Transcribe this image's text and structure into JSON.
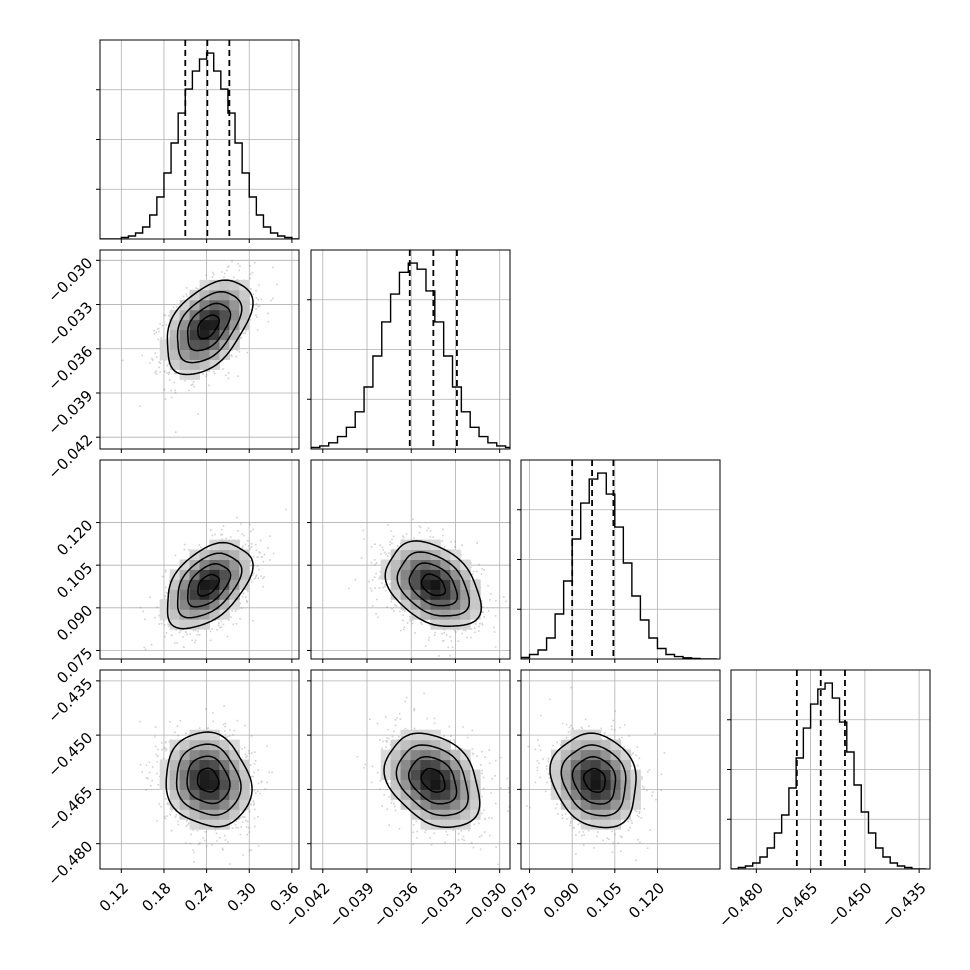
{
  "chart_data": {
    "type": "corner",
    "parameters": [
      {
        "axis_range": [
          0.09,
          0.37
        ],
        "ticks": [
          0.12,
          0.18,
          0.24,
          0.3,
          0.36
        ],
        "tick_labels": [
          "0.12",
          "0.18",
          "0.24",
          "0.30",
          "0.36"
        ],
        "quantiles": [
          0.21,
          0.241,
          0.272
        ],
        "mean": 0.242,
        "sd": 0.03,
        "hist_bins": [
          0.09,
          0.1,
          0.11,
          0.12,
          0.13,
          0.14,
          0.15,
          0.16,
          0.17,
          0.18,
          0.19,
          0.2,
          0.21,
          0.22,
          0.23,
          0.24,
          0.25,
          0.26,
          0.27,
          0.28,
          0.29,
          0.3,
          0.31,
          0.32,
          0.33,
          0.34,
          0.35,
          0.36,
          0.37
        ],
        "hist_counts": [
          0,
          0,
          0,
          0.5,
          1,
          2,
          4,
          8,
          14,
          22,
          32,
          42,
          50,
          56,
          60,
          62,
          56,
          50,
          42,
          32,
          22,
          14,
          8,
          4,
          2,
          1,
          0.5,
          0
        ]
      },
      {
        "axis_range": [
          -0.0428,
          -0.0293
        ],
        "ticks": [
          -0.042,
          -0.039,
          -0.036,
          -0.033,
          -0.03
        ],
        "tick_labels": [
          "−0.042",
          "−0.039",
          "−0.036",
          "−0.033",
          "−0.030"
        ],
        "quantiles": [
          -0.0361,
          -0.0345,
          -0.0329
        ],
        "mean": -0.0345,
        "sd": 0.0016,
        "hist_bins": [
          -0.0428,
          -0.0422,
          -0.0416,
          -0.041,
          -0.0404,
          -0.0398,
          -0.0392,
          -0.0386,
          -0.038,
          -0.0374,
          -0.0368,
          -0.0362,
          -0.0356,
          -0.035,
          -0.0344,
          -0.0338,
          -0.0332,
          -0.0326,
          -0.032,
          -0.0314,
          -0.0308,
          -0.0302,
          -0.0296,
          -0.029
        ],
        "hist_counts": [
          0.5,
          1,
          2,
          4,
          7,
          12,
          20,
          30,
          41,
          50,
          57,
          60,
          58,
          51,
          41,
          30,
          20,
          12,
          7,
          4,
          2,
          1,
          0.5
        ]
      },
      {
        "axis_range": [
          0.072,
          0.142
        ],
        "ticks": [
          0.075,
          0.09,
          0.105,
          0.12
        ],
        "tick_labels": [
          "0.075",
          "0.090",
          "0.105",
          "0.120"
        ],
        "quantiles": [
          0.09,
          0.097,
          0.1045
        ],
        "mean": 0.098,
        "sd": 0.0075,
        "hist_bins": [
          0.072,
          0.075,
          0.078,
          0.081,
          0.084,
          0.087,
          0.09,
          0.093,
          0.096,
          0.099,
          0.102,
          0.105,
          0.108,
          0.111,
          0.114,
          0.117,
          0.12,
          0.123,
          0.126,
          0.129,
          0.132,
          0.135,
          0.138,
          0.141
        ],
        "hist_counts": [
          0.5,
          1.5,
          3,
          7,
          15,
          26,
          40,
          52,
          60,
          62,
          55,
          44,
          32,
          21,
          13,
          7,
          3.5,
          1.5,
          0.8,
          0.4,
          0.2,
          0,
          0
        ]
      },
      {
        "axis_range": [
          -0.487,
          -0.432
        ],
        "ticks": [
          -0.48,
          -0.465,
          -0.45,
          -0.435
        ],
        "tick_labels": [
          "−0.480",
          "−0.465",
          "−0.450",
          "−0.435"
        ],
        "quantiles": [
          -0.4688,
          -0.4622,
          -0.4555
        ],
        "mean": -0.4625,
        "sd": 0.0065,
        "hist_bins": [
          -0.487,
          -0.485,
          -0.483,
          -0.481,
          -0.479,
          -0.477,
          -0.475,
          -0.473,
          -0.471,
          -0.469,
          -0.467,
          -0.465,
          -0.463,
          -0.461,
          -0.459,
          -0.457,
          -0.455,
          -0.453,
          -0.451,
          -0.449,
          -0.447,
          -0.445,
          -0.443,
          -0.441,
          -0.439,
          -0.437,
          -0.435,
          -0.433
        ],
        "hist_counts": [
          0,
          0.5,
          1,
          2,
          4,
          7,
          12,
          18,
          27,
          37,
          47,
          55,
          60,
          62,
          57,
          49,
          39,
          28,
          19,
          12,
          7,
          4,
          2,
          1,
          0.5,
          0,
          0
        ]
      }
    ],
    "correlations": {
      "1-0": 0.45,
      "2-0": 0.45,
      "2-1": -0.35,
      "3-0": -0.12,
      "3-1": -0.3,
      "3-2": -0.15
    },
    "contour_levels_sigma": [
      0.5,
      1.0,
      1.5,
      2.0
    ],
    "title": "",
    "xlabel": "",
    "ylabel": "",
    "grid": true
  }
}
